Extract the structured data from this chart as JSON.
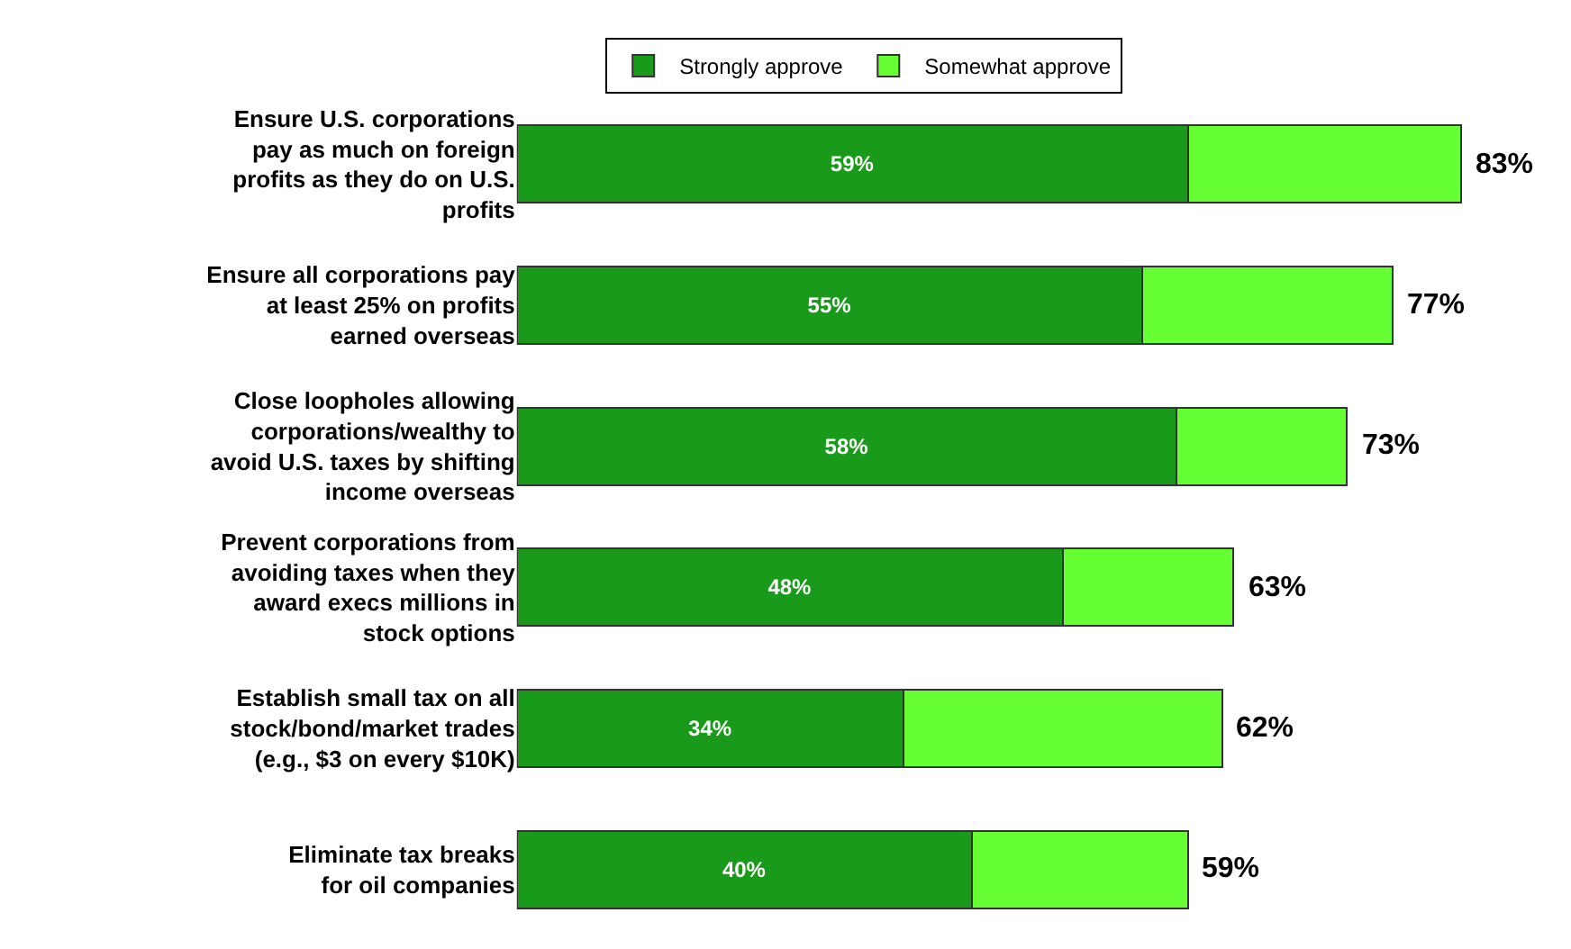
{
  "chart_data": {
    "type": "bar",
    "orientation": "horizontal",
    "stacked": true,
    "categories": [
      "Ensure U.S. corporations\npay as much on foreign\nprofits as they do on U.S.\nprofits",
      "Ensure all corporations pay\nat least 25% on profits\nearned overseas",
      "Close loopholes allowing\ncorporations/wealthy to\navoid U.S. taxes by shifting\nincome overseas",
      "Prevent corporations from\navoiding taxes when they\naward execs millions in\nstock options",
      "Establish small tax on all\nstock/bond/market trades\n(e.g., $3 on every $10K)",
      "Eliminate tax breaks\nfor oil companies"
    ],
    "series": [
      {
        "name": "Strongly approve",
        "color": "#1a9a1a",
        "values": [
          59,
          55,
          58,
          48,
          34,
          40
        ],
        "value_labels": [
          "59%",
          "55%",
          "58%",
          "48%",
          "34%",
          "40%"
        ]
      },
      {
        "name": "Somewhat approve",
        "color": "#66ff33",
        "values": [
          24,
          22,
          15,
          15,
          28,
          19
        ]
      }
    ],
    "totals": [
      "83%",
      "77%",
      "73%",
      "63%",
      "62%",
      "59%"
    ],
    "xlim": [
      0,
      92
    ],
    "tick_labels": false,
    "legend": "top"
  }
}
